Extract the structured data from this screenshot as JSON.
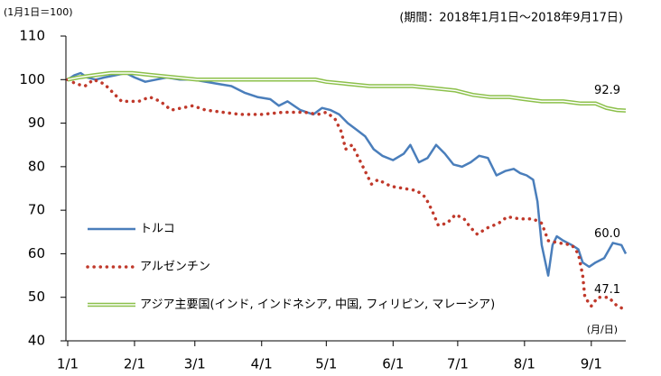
{
  "chart_data": {
    "type": "line",
    "subtitle": "(1月1日＝100)",
    "annotations": [
      "(期間：2018年1月1日～2018年9月17日)",
      "(月/日)"
    ],
    "xlim": [
      0,
      259
    ],
    "xticks": [
      {
        "value": 0,
        "label": "1/1"
      },
      {
        "value": 31,
        "label": "2/1"
      },
      {
        "value": 59,
        "label": "3/1"
      },
      {
        "value": 90,
        "label": "4/1"
      },
      {
        "value": 120,
        "label": "5/1"
      },
      {
        "value": 151,
        "label": "6/1"
      },
      {
        "value": 181,
        "label": "7/1"
      },
      {
        "value": 212,
        "label": "8/1"
      },
      {
        "value": 243,
        "label": "9/1"
      }
    ],
    "ylim": [
      40,
      110
    ],
    "yticks": [
      40,
      50,
      60,
      70,
      80,
      90,
      100,
      110
    ],
    "legend": "inside-bottom-left",
    "series": [
      {
        "name": "トルコ",
        "color": "#4a7ebb",
        "style": "solid",
        "end_label": "60.0",
        "x": [
          0,
          3,
          6,
          9,
          13,
          17,
          22,
          27,
          31,
          36,
          41,
          46,
          52,
          58,
          64,
          70,
          76,
          82,
          88,
          94,
          98,
          102,
          108,
          114,
          118,
          122,
          126,
          130,
          134,
          138,
          142,
          146,
          151,
          156,
          159,
          163,
          167,
          171,
          175,
          179,
          183,
          187,
          191,
          195,
          199,
          203,
          207,
          210,
          213,
          216,
          218,
          220,
          223,
          225,
          227,
          230,
          234,
          237,
          239,
          242,
          245,
          249,
          253,
          257,
          259
        ],
        "values": [
          100,
          101,
          101.5,
          100.5,
          100,
          100.5,
          101,
          101.5,
          100.5,
          99.5,
          100,
          100.5,
          100,
          100,
          99.5,
          99,
          98.5,
          97,
          96,
          95.5,
          94,
          95,
          93,
          92,
          93.5,
          93,
          92,
          90,
          88.5,
          87,
          84,
          82.5,
          81.5,
          83,
          85,
          81,
          82,
          85,
          83,
          80.5,
          80,
          81,
          82.5,
          82,
          78,
          79,
          79.5,
          78.5,
          78,
          77,
          72,
          62,
          55,
          62,
          64,
          63,
          62,
          61,
          58,
          57,
          58,
          59,
          62.5,
          62,
          60
        ]
      },
      {
        "name": "アルゼンチン",
        "color": "#c0392b",
        "style": "dotted",
        "end_label": "47.1",
        "x": [
          0,
          4,
          8,
          12,
          17,
          21,
          25,
          33,
          38,
          43,
          48,
          53,
          58,
          64,
          72,
          80,
          90,
          100,
          110,
          116,
          120,
          124,
          127,
          129,
          132,
          135,
          138,
          141,
          144,
          150,
          156,
          162,
          166,
          169,
          172,
          176,
          180,
          184,
          187,
          190,
          195,
          200,
          204,
          210,
          216,
          220,
          223,
          228,
          234,
          237,
          239,
          240,
          243,
          246,
          251,
          255,
          259
        ],
        "values": [
          100,
          99,
          98.5,
          100,
          99,
          97,
          95,
          95,
          96,
          95,
          93,
          93.5,
          94,
          93,
          92.5,
          92,
          92,
          92.5,
          92.5,
          92,
          92.5,
          91,
          88,
          84,
          85,
          82,
          79,
          76,
          77,
          75.5,
          75,
          74.5,
          73,
          70,
          66.5,
          67,
          69,
          68,
          66,
          64.5,
          66,
          67,
          68.5,
          68,
          68,
          67,
          63,
          62.5,
          62,
          60,
          55,
          50,
          48,
          50,
          50,
          48,
          47.1
        ]
      },
      {
        "name": "アジア主要国(インド, インドネシア, 中国, フィリピン, マレーシア)",
        "color": "#8cc04a",
        "style": "double",
        "end_label": "92.9",
        "x": [
          0,
          5,
          12,
          20,
          30,
          40,
          50,
          60,
          75,
          90,
          105,
          115,
          120,
          130,
          140,
          150,
          160,
          170,
          180,
          188,
          196,
          205,
          212,
          220,
          230,
          238,
          245,
          250,
          255,
          259
        ],
        "values": [
          100,
          100.5,
          101,
          101.5,
          101.5,
          101,
          100.5,
          100,
          100,
          100,
          100,
          100,
          99.5,
          99,
          98.5,
          98.5,
          98.5,
          98,
          97.5,
          96.5,
          96,
          96,
          95.5,
          95,
          95,
          94.5,
          94.5,
          93.5,
          93,
          92.9
        ]
      }
    ]
  }
}
